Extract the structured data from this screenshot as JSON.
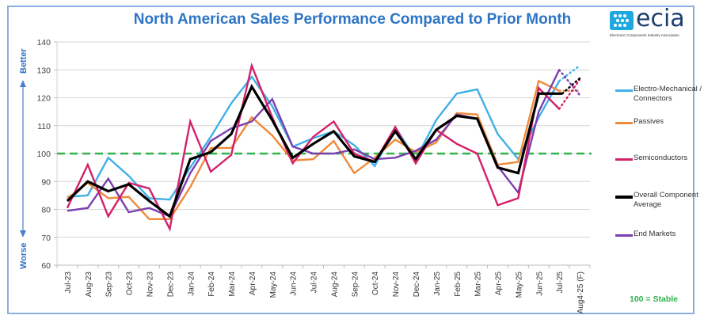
{
  "page": {
    "title": "North American Sales Performance Compared to Prior Month",
    "logo": {
      "name": "ecia",
      "subtitle": "Electronic Components Industry Association"
    },
    "side_labels": {
      "top": "Better",
      "bottom": "Worse"
    },
    "stable_note": "100 = Stable"
  },
  "chart_data": {
    "type": "line",
    "title": "North American Sales Performance Compared to Prior Month",
    "xlabel": "",
    "ylabel": "",
    "ylim": [
      60,
      140
    ],
    "yticks": [
      60,
      70,
      80,
      90,
      100,
      110,
      120,
      130,
      140
    ],
    "grid": true,
    "legend_position": "right",
    "categories": [
      "Jul-23",
      "Aug-23",
      "Sep-23",
      "Oct-23",
      "Nov-23",
      "Dec-23",
      "Jan-24",
      "Feb-24",
      "Mar-24",
      "Apr-24",
      "May-24",
      "Jun-24",
      "Jul-24",
      "Aug-24",
      "Sep-24",
      "Oct-24",
      "Nov-24",
      "Dec-24",
      "Jan-25",
      "Feb-25",
      "Mar-25",
      "Apr-25",
      "May-25",
      "Jun-25",
      "Jul-25",
      "Aug4-25 (F)"
    ],
    "forecast_category": "Aug4-25 (F)",
    "reference_line": {
      "value": 100,
      "label": "100 = Stable",
      "color": "#2fb34a",
      "style": "dashed"
    },
    "series": [
      {
        "name": "Electro-Mechanical / Connectors",
        "color": "#3fb0e6",
        "values": [
          84.5,
          85,
          98.5,
          92,
          84,
          83.5,
          95,
          106,
          118,
          127.5,
          117,
          102.5,
          105.5,
          108,
          103,
          95.5,
          109.5,
          98,
          112,
          121.5,
          123,
          107,
          98,
          113,
          126,
          131.5
        ]
      },
      {
        "name": "Passives",
        "color": "#ef8a3a",
        "values": [
          84,
          89.5,
          84,
          84.5,
          76.5,
          76.5,
          88,
          102,
          102,
          113,
          106.5,
          97.5,
          98,
          104.5,
          93,
          98.5,
          105,
          100.5,
          104,
          114.5,
          114,
          96,
          97,
          126,
          122.5,
          122.5
        ]
      },
      {
        "name": "Semiconductors",
        "color": "#d4206a",
        "values": [
          80.5,
          96,
          77.5,
          89.5,
          87.5,
          73,
          111.5,
          93.5,
          99.5,
          131.5,
          113,
          96.5,
          106,
          111.5,
          100,
          97,
          109.5,
          96.5,
          108.5,
          103.5,
          100,
          81.5,
          84,
          123.5,
          116,
          126.5
        ]
      },
      {
        "name": "Overall Component Average",
        "color": "#000000",
        "values": [
          83,
          90,
          86.5,
          89,
          83,
          77.5,
          98,
          100.5,
          107,
          124,
          112,
          98.5,
          103.5,
          108,
          99,
          97,
          108,
          98,
          108.5,
          113.5,
          112.5,
          95,
          93,
          121.5,
          121.5,
          127
        ]
      },
      {
        "name": "End Markets",
        "color": "#7b3fb0",
        "values": [
          79.5,
          80.5,
          91,
          79,
          80.5,
          77.5,
          93,
          104.5,
          109,
          111.5,
          119.5,
          102.5,
          100,
          100,
          101.5,
          98,
          98.5,
          101,
          105,
          114,
          112.5,
          95.5,
          86,
          115,
          130,
          121
        ]
      }
    ]
  }
}
